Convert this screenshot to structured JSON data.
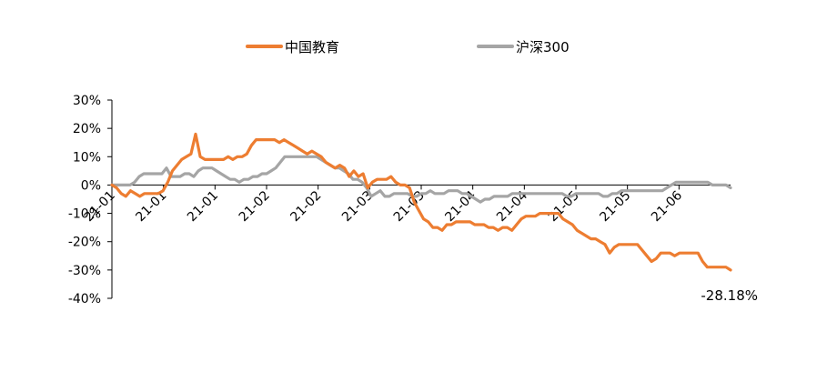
{
  "chart_data": {
    "type": "line",
    "title": "",
    "xlabel": "",
    "ylabel": "",
    "ylim": [
      -40,
      30
    ],
    "y_ticks": [
      30,
      20,
      10,
      0,
      -10,
      -20,
      -30,
      -40
    ],
    "y_tick_labels": [
      "30%",
      "20%",
      "10%",
      "0%",
      "-10%",
      "-20%",
      "-30%",
      "-40%"
    ],
    "x_tick_labels": [
      "21-01",
      "21-01",
      "21-01",
      "21-02",
      "21-02",
      "21-03",
      "21-03",
      "21-04",
      "21-04",
      "21-05",
      "21-05",
      "21-06"
    ],
    "legend_position": "top",
    "annotation": "-28.18%",
    "series": [
      {
        "name": "中国教育",
        "color": "#ED7D31",
        "values": [
          0,
          -1,
          -3,
          -4,
          -2,
          -3,
          -4,
          -3,
          -3,
          -3,
          -3,
          -2,
          1,
          5,
          7,
          9,
          10,
          11,
          18,
          10,
          9,
          9,
          9,
          9,
          9,
          10,
          9,
          10,
          10,
          11,
          14,
          16,
          16,
          16,
          16,
          16,
          15,
          16,
          15,
          14,
          13,
          12,
          11,
          12,
          11,
          10,
          8,
          7,
          6,
          7,
          6,
          3,
          5,
          3,
          4,
          -1,
          1,
          2,
          2,
          2,
          3,
          1,
          0,
          0,
          -1,
          -6,
          -9,
          -12,
          -13,
          -15,
          -15,
          -16,
          -14,
          -14,
          -13,
          -13,
          -13,
          -13,
          -14,
          -14,
          -14,
          -15,
          -15,
          -16,
          -15,
          -15,
          -16,
          -14,
          -12,
          -11,
          -11,
          -11,
          -10,
          -10,
          -10,
          -10,
          -10,
          -12,
          -13,
          -14,
          -16,
          -17,
          -18,
          -19,
          -19,
          -20,
          -21,
          -24,
          -22,
          -21,
          -21,
          -21,
          -21,
          -21,
          -23,
          -25,
          -27,
          -26,
          -24,
          -24,
          -24,
          -25,
          -24,
          -24,
          -24,
          -24,
          -24,
          -27,
          -29,
          -29,
          -29,
          -29,
          -29,
          -30
        ]
      },
      {
        "name": "沪深300",
        "color": "#A5A5A5",
        "values": [
          0,
          0,
          0,
          0,
          0,
          1,
          3,
          4,
          4,
          4,
          4,
          4,
          6,
          3,
          3,
          3,
          4,
          4,
          3,
          5,
          6,
          6,
          6,
          5,
          4,
          3,
          2,
          2,
          1,
          2,
          2,
          3,
          3,
          4,
          4,
          5,
          6,
          8,
          10,
          10,
          10,
          10,
          10,
          10,
          10,
          10,
          9,
          8,
          7,
          6,
          6,
          5,
          4,
          2,
          2,
          1,
          -1,
          -4,
          -3,
          -2,
          -4,
          -4,
          -3,
          -3,
          -3,
          -3,
          -4,
          -4,
          -3,
          -3,
          -2,
          -3,
          -3,
          -3,
          -2,
          -2,
          -2,
          -3,
          -3,
          -4,
          -5,
          -6,
          -5,
          -5,
          -4,
          -4,
          -4,
          -4,
          -3,
          -3,
          -3,
          -3,
          -3,
          -3,
          -3,
          -3,
          -3,
          -3,
          -3,
          -3,
          -4,
          -4,
          -3,
          -3,
          -3,
          -3,
          -3,
          -3,
          -4,
          -4,
          -3,
          -3,
          -2,
          -2,
          -2,
          -2,
          -2,
          -2,
          -2,
          -2,
          -2,
          -2,
          -1,
          0,
          1,
          1,
          1,
          1,
          1,
          1,
          1,
          1,
          0,
          0,
          0,
          0,
          -1
        ]
      }
    ]
  }
}
